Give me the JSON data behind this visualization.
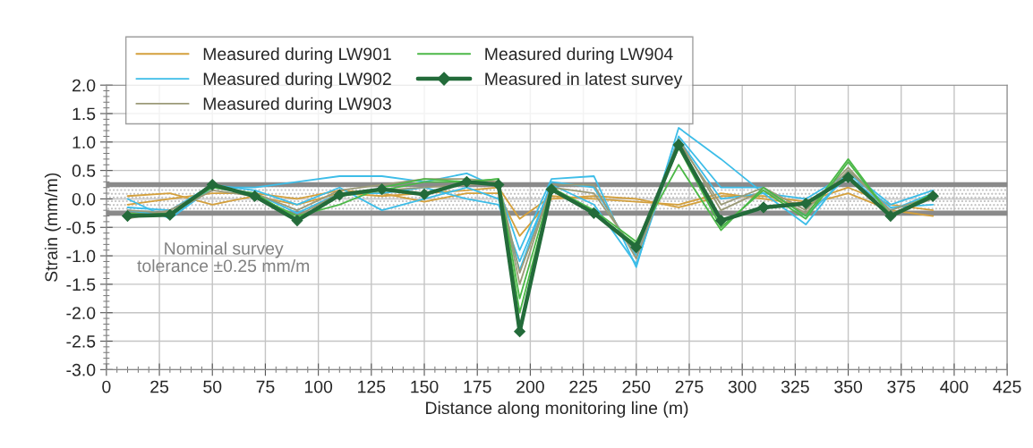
{
  "chart_data": {
    "type": "line",
    "xlabel": "Distance along monitoring line (m)",
    "ylabel": "Strain (mm/m)",
    "x": [
      10,
      30,
      50,
      70,
      90,
      110,
      130,
      150,
      170,
      185,
      195,
      210,
      230,
      250,
      270,
      290,
      310,
      330,
      350,
      370,
      390
    ],
    "xlim": [
      0,
      425
    ],
    "xticks": [
      0,
      25,
      50,
      75,
      100,
      125,
      150,
      175,
      200,
      225,
      250,
      275,
      300,
      325,
      350,
      375,
      400,
      425
    ],
    "ylim": [
      -3.0,
      2.0
    ],
    "yticks": [
      {
        "value": -3.0,
        "label": "-3.0"
      },
      {
        "value": -2.5,
        "label": "-2.5"
      },
      {
        "value": -2.0,
        "label": "-2.0"
      },
      {
        "value": -1.5,
        "label": "-1.5"
      },
      {
        "value": -1.0,
        "label": "-1.0"
      },
      {
        "value": -0.5,
        "label": "-0.5"
      },
      {
        "value": 0.0,
        "label": "0.0"
      },
      {
        "value": 0.5,
        "label": "0.5"
      },
      {
        "value": 1.0,
        "label": "1.0"
      },
      {
        "value": 1.5,
        "label": "1.5"
      },
      {
        "value": 2.0,
        "label": "2.0"
      }
    ],
    "grid": true,
    "legend": "top left",
    "marker": "none",
    "line_style": "solid",
    "bands": [
      {
        "axis": "y",
        "from": -0.25,
        "to": 0.25
      }
    ],
    "ref_lines": [
      {
        "axis": "y",
        "value": 0.25,
        "color": "#8a8a8a"
      },
      {
        "axis": "y",
        "value": -0.25,
        "color": "#8a8a8a"
      }
    ],
    "annotations": [
      "Nominal survey\ntolerance ±0.25 mm/m"
    ],
    "series": [
      {
        "name": "Measured during LW901",
        "color": "#d4a03c",
        "values": [
          0.05,
          0.1,
          -0.1,
          0.05,
          -0.1,
          0.1,
          0.05,
          0.1,
          0.15,
          0.2,
          -0.35,
          0.05,
          0.0,
          -0.05,
          -0.1,
          0.1,
          0.0,
          -0.1,
          0.1,
          -0.2,
          -0.3
        ]
      },
      {
        "color": "#d4a03c",
        "values": [
          -0.1,
          0.0,
          0.1,
          0.1,
          0.0,
          0.15,
          0.1,
          -0.05,
          0.1,
          0.1,
          -0.65,
          0.0,
          0.05,
          0.0,
          -0.15,
          0.05,
          0.05,
          -0.05,
          0.2,
          -0.1,
          -0.2
        ]
      },
      {
        "name": "Measured during LW902",
        "color": "#3dbde8",
        "values": [
          0.0,
          -0.35,
          0.2,
          0.2,
          0.3,
          0.4,
          0.4,
          0.3,
          0.45,
          0.2,
          -0.9,
          0.35,
          0.4,
          -1.2,
          1.25,
          0.7,
          0.1,
          -0.45,
          0.5,
          -0.1,
          0.15
        ]
      },
      {
        "color": "#3dbde8",
        "values": [
          -0.15,
          -0.2,
          0.25,
          0.15,
          -0.1,
          0.2,
          -0.2,
          0.0,
          0.2,
          0.0,
          -1.25,
          0.3,
          0.2,
          -1.0,
          1.1,
          0.2,
          0.2,
          -0.3,
          0.4,
          -0.2,
          0.1
        ]
      },
      {
        "color": "#3dbde8",
        "values": [
          -0.2,
          -0.3,
          0.2,
          0.1,
          -0.25,
          0.1,
          0.1,
          0.2,
          0.0,
          -0.1,
          -1.1,
          0.25,
          -0.1,
          -1.15,
          1.05,
          0.0,
          0.1,
          0.0,
          0.45,
          -0.15,
          -0.1
        ]
      },
      {
        "name": "Measured during LW903",
        "color": "#9b9a78",
        "values": [
          -0.35,
          -0.2,
          0.2,
          0.1,
          -0.2,
          0.15,
          0.25,
          0.35,
          0.35,
          0.3,
          -1.5,
          0.25,
          0.25,
          -1.05,
          1.0,
          -0.1,
          0.2,
          -0.2,
          0.55,
          -0.25,
          0.0
        ]
      },
      {
        "color": "#9b9a78",
        "values": [
          -0.2,
          -0.25,
          0.15,
          0.05,
          -0.3,
          0.1,
          0.15,
          0.2,
          0.25,
          0.3,
          -1.3,
          0.2,
          0.1,
          -0.95,
          1.05,
          -0.2,
          0.15,
          -0.25,
          0.5,
          -0.2,
          0.05
        ]
      },
      {
        "name": "Measured during LW904",
        "color": "#4cb848",
        "values": [
          -0.25,
          -0.3,
          0.25,
          0.05,
          -0.3,
          -0.1,
          0.2,
          0.35,
          0.3,
          0.35,
          -1.75,
          0.2,
          -0.2,
          -0.75,
          0.6,
          -0.55,
          0.2,
          -0.3,
          0.7,
          -0.3,
          0.1
        ]
      },
      {
        "color": "#4cb848",
        "values": [
          -0.3,
          -0.25,
          0.2,
          0.1,
          -0.35,
          0.05,
          0.15,
          0.3,
          0.3,
          0.35,
          -2.0,
          0.15,
          -0.25,
          -0.8,
          0.9,
          -0.5,
          0.15,
          -0.35,
          0.65,
          -0.3,
          0.05
        ]
      },
      {
        "name": "Measured in latest survey",
        "color": "#236b3a",
        "marker": "diamond",
        "values": [
          -0.3,
          -0.28,
          0.25,
          0.05,
          -0.38,
          0.07,
          0.17,
          0.08,
          0.3,
          0.25,
          -2.33,
          0.17,
          -0.25,
          -0.85,
          0.95,
          -0.38,
          -0.15,
          -0.08,
          0.38,
          -0.3,
          0.05
        ]
      }
    ]
  }
}
